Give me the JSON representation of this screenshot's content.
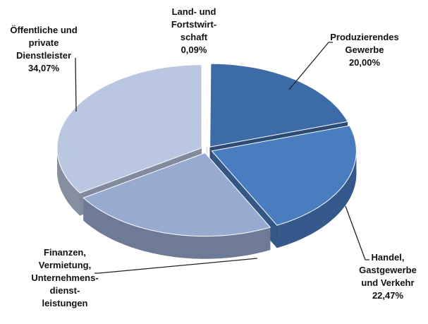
{
  "chart_data": {
    "type": "pie3d",
    "categories": [
      "Land- und\nFortstwirt-\nschaft",
      "Produzierendes\nGewerbe",
      "Handel,\nGastgewerbe\nund Verkehr",
      "Finanzen,\nVermietung,\nUnternehmens-\ndienst-\nleistungen",
      "Öffentliche und\nprivate\nDienstleister"
    ],
    "values": [
      0.09,
      20.0,
      22.47,
      23.37,
      34.07
    ],
    "value_labels": [
      "0,09%",
      "20,00%",
      "22,47%",
      null,
      "34,07%"
    ],
    "colors": [
      "#f4f6fa",
      "#3d6ba8",
      "#4a7cc0",
      "#97abd0",
      "#b9c7e0"
    ]
  }
}
